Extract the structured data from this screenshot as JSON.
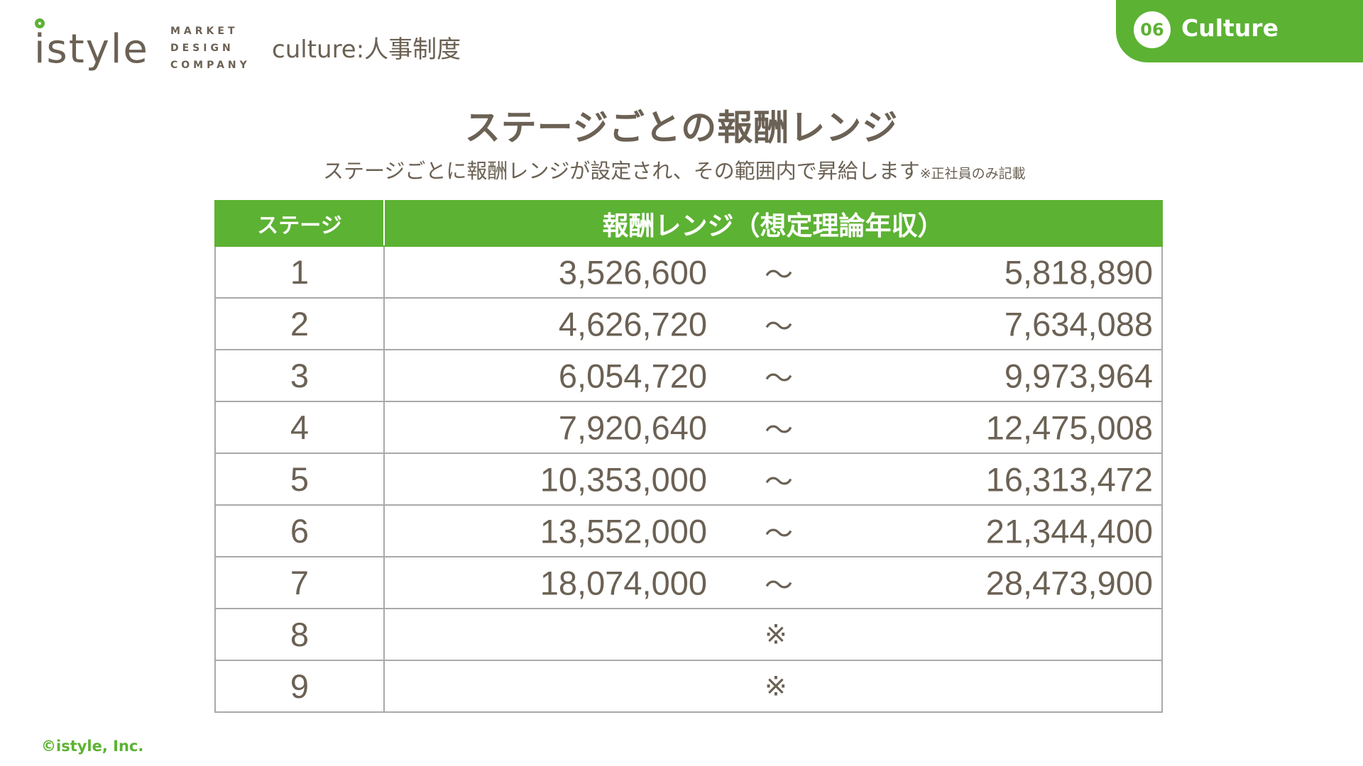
{
  "logo": {
    "wordmark": "istyle",
    "tagline": [
      "MARKET",
      "DESIGN",
      "COMPANY"
    ]
  },
  "header": {
    "section_title": "culture:人事制度"
  },
  "badge": {
    "number": "06",
    "label": "Culture"
  },
  "title": "ステージごとの報酬レンジ",
  "subtitle": {
    "text": "ステージごとに報酬レンジが設定され、その範囲内で昇給します",
    "note": "※正社員のみ記載"
  },
  "table": {
    "headers": {
      "stage": "ステージ",
      "range": "報酬レンジ（想定理論年収）"
    },
    "separator": "～",
    "rows": [
      {
        "stage": "1",
        "min": "3,526,600",
        "max": "5,818,890"
      },
      {
        "stage": "2",
        "min": "4,626,720",
        "max": "7,634,088"
      },
      {
        "stage": "3",
        "min": "6,054,720",
        "max": "9,973,964"
      },
      {
        "stage": "4",
        "min": "7,920,640",
        "max": "12,475,008"
      },
      {
        "stage": "5",
        "min": "10,353,000",
        "max": "16,313,472"
      },
      {
        "stage": "6",
        "min": "13,552,000",
        "max": "21,344,400"
      },
      {
        "stage": "7",
        "min": "18,074,000",
        "max": "28,473,900"
      },
      {
        "stage": "8",
        "note": "※"
      },
      {
        "stage": "9",
        "note": "※"
      }
    ]
  },
  "footer": {
    "copyright": "©istyle, Inc."
  },
  "colors": {
    "accent": "#5cb233",
    "text": "#6b6154",
    "border": "#a9a9a9"
  }
}
